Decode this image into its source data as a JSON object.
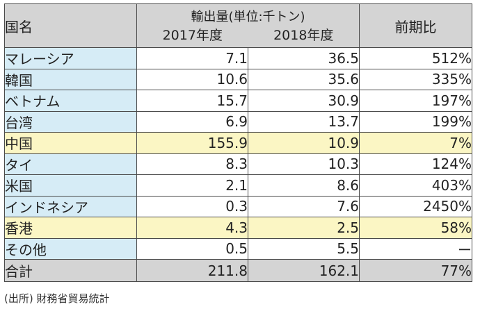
{
  "header": {
    "country": "国名",
    "export_volume": "輸出量(単位:千トン)",
    "year_2017": "2017年度",
    "year_2018": "2018年度",
    "yoy": "前期比"
  },
  "rows": [
    {
      "country": "マレーシア",
      "v2017": "7.1",
      "v2018": "36.5",
      "yoy": "512%",
      "highlight": false
    },
    {
      "country": "韓国",
      "v2017": "10.6",
      "v2018": "35.6",
      "yoy": "335%",
      "highlight": false
    },
    {
      "country": "ベトナム",
      "v2017": "15.7",
      "v2018": "30.9",
      "yoy": "197%",
      "highlight": false
    },
    {
      "country": "台湾",
      "v2017": "6.9",
      "v2018": "13.7",
      "yoy": "199%",
      "highlight": false
    },
    {
      "country": "中国",
      "v2017": "155.9",
      "v2018": "10.9",
      "yoy": "7%",
      "highlight": true
    },
    {
      "country": "タイ",
      "v2017": "8.3",
      "v2018": "10.3",
      "yoy": "124%",
      "highlight": false
    },
    {
      "country": "米国",
      "v2017": "2.1",
      "v2018": "8.6",
      "yoy": "403%",
      "highlight": false
    },
    {
      "country": "インドネシア",
      "v2017": "0.3",
      "v2018": "7.6",
      "yoy": "2450%",
      "highlight": false
    },
    {
      "country": "香港",
      "v2017": "4.3",
      "v2018": "2.5",
      "yoy": "58%",
      "highlight": true
    },
    {
      "country": "その他",
      "v2017": "0.5",
      "v2018": "5.5",
      "yoy": "ー",
      "highlight": false
    }
  ],
  "total": {
    "label": "合計",
    "v2017": "211.8",
    "v2018": "162.1",
    "yoy": "77%"
  },
  "source": "(出所) 財務省貿易統計",
  "colors": {
    "header_bg": "#d4d4d4",
    "name_bg": "#d6ecf6",
    "highlight_bg": "#fbf6c4",
    "border": "#4a4a4a"
  }
}
